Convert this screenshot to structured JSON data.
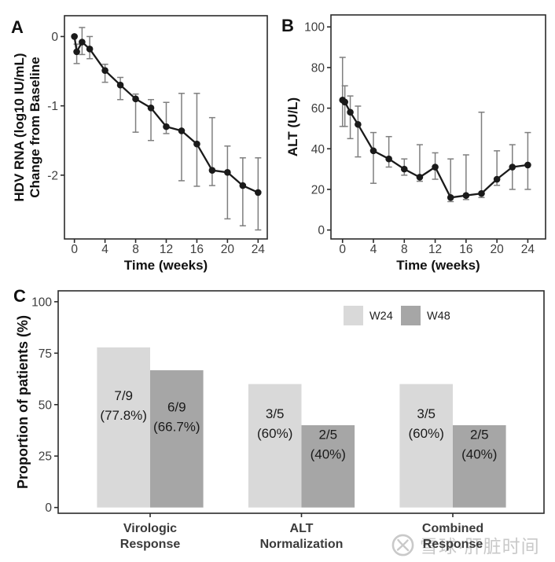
{
  "figure": {
    "panel_letters": {
      "a": "A",
      "b": "B",
      "c": "C"
    },
    "background": "#ffffff"
  },
  "colors": {
    "line": "#1a1a1a",
    "point": "#1a1a1a",
    "error_bar": "#7f7f7f",
    "axis": "#2b2b2b",
    "tick_label": "#3d3d3d",
    "axis_title": "#111111",
    "bar_label": "#1a1a1a",
    "category_label": "#3a3a3a",
    "watermark": "#c7c7c7"
  },
  "chart_data": [
    {
      "panel": "A",
      "type": "line",
      "xlabel": "Time (weeks)",
      "ylabel_lines": [
        "HDV RNA (log10 IU/mL)",
        "Change from Baseline"
      ],
      "x": [
        0,
        0.3,
        1,
        2,
        4,
        6,
        8,
        10,
        12,
        14,
        16,
        18,
        20,
        22,
        24
      ],
      "y": [
        0,
        -0.22,
        -0.08,
        -0.18,
        -0.49,
        -0.7,
        -0.9,
        -1.03,
        -1.3,
        -1.36,
        -1.55,
        -1.93,
        -1.96,
        -2.15,
        -2.25
      ],
      "err_low": [
        0,
        -0.39,
        -0.26,
        -0.32,
        -0.66,
        -0.91,
        -1.38,
        -1.5,
        -1.4,
        -2.08,
        -2.16,
        -2.15,
        -2.63,
        -2.73,
        -2.79
      ],
      "err_high": [
        0,
        -0.11,
        0.13,
        0.0,
        -0.4,
        -0.59,
        -0.83,
        -0.91,
        -0.95,
        -0.82,
        -0.82,
        -1.17,
        -1.58,
        -1.75,
        -1.75
      ],
      "xticks": [
        0,
        4,
        8,
        12,
        16,
        20,
        24
      ],
      "yticks": [
        0,
        -1,
        -2
      ],
      "xlim": [
        -1.3,
        25.2
      ],
      "ylim": [
        -2.92,
        0.3
      ],
      "grid": false,
      "error_caps": true,
      "marker": "circle"
    },
    {
      "panel": "B",
      "type": "line",
      "xlabel": "Time (weeks)",
      "ylabel_lines": [
        "ALT (U/L)"
      ],
      "x": [
        0,
        0.3,
        1,
        2,
        4,
        6,
        8,
        10,
        12,
        14,
        16,
        18,
        20,
        22,
        24
      ],
      "y": [
        64,
        63,
        58,
        52,
        39,
        35,
        30,
        26,
        31,
        16,
        17,
        18,
        25,
        31,
        32
      ],
      "err_low": [
        51,
        51,
        45,
        36,
        23,
        31,
        27,
        24,
        25,
        14,
        15,
        16,
        22,
        20,
        20
      ],
      "err_high": [
        85,
        71,
        66,
        61,
        48,
        46,
        35,
        42,
        38,
        35,
        37,
        58,
        39,
        42,
        48
      ],
      "xticks": [
        0,
        4,
        8,
        12,
        16,
        20,
        24
      ],
      "yticks": [
        0,
        20,
        40,
        60,
        80,
        100
      ],
      "xlim": [
        -1.5,
        26.3
      ],
      "ylim": [
        -4.4,
        105.9
      ],
      "grid": false,
      "error_caps": true,
      "marker": "circle"
    },
    {
      "panel": "C",
      "type": "bar",
      "ylabel": "Proportion of patients (%)",
      "categories": [
        [
          "Virologic",
          "Response"
        ],
        [
          "ALT",
          "Normalization"
        ],
        [
          "Combined",
          "Response"
        ]
      ],
      "series": [
        {
          "name": "W24",
          "color": "#d9d9d9",
          "values": [
            77.8,
            60,
            60
          ],
          "bar_labels": [
            [
              "7/9",
              "(77.8%)"
            ],
            [
              "3/5",
              "(60%)"
            ],
            [
              "3/5",
              "(60%)"
            ]
          ]
        },
        {
          "name": "W48",
          "color": "#a6a6a6",
          "values": [
            66.7,
            40,
            40
          ],
          "bar_labels": [
            [
              "6/9",
              "(66.7%)"
            ],
            [
              "2/5",
              "(40%)"
            ],
            [
              "2/5",
              "(40%)"
            ]
          ]
        }
      ],
      "yticks": [
        0,
        25,
        50,
        75,
        100
      ],
      "ylim": [
        -2.8,
        105.3
      ],
      "grid": false,
      "legend": {
        "labels": [
          "W24",
          "W48"
        ],
        "position": "top-center"
      }
    }
  ],
  "watermark": {
    "text": "雪球·肝脏时间",
    "logo": "xueqiu-logo"
  }
}
